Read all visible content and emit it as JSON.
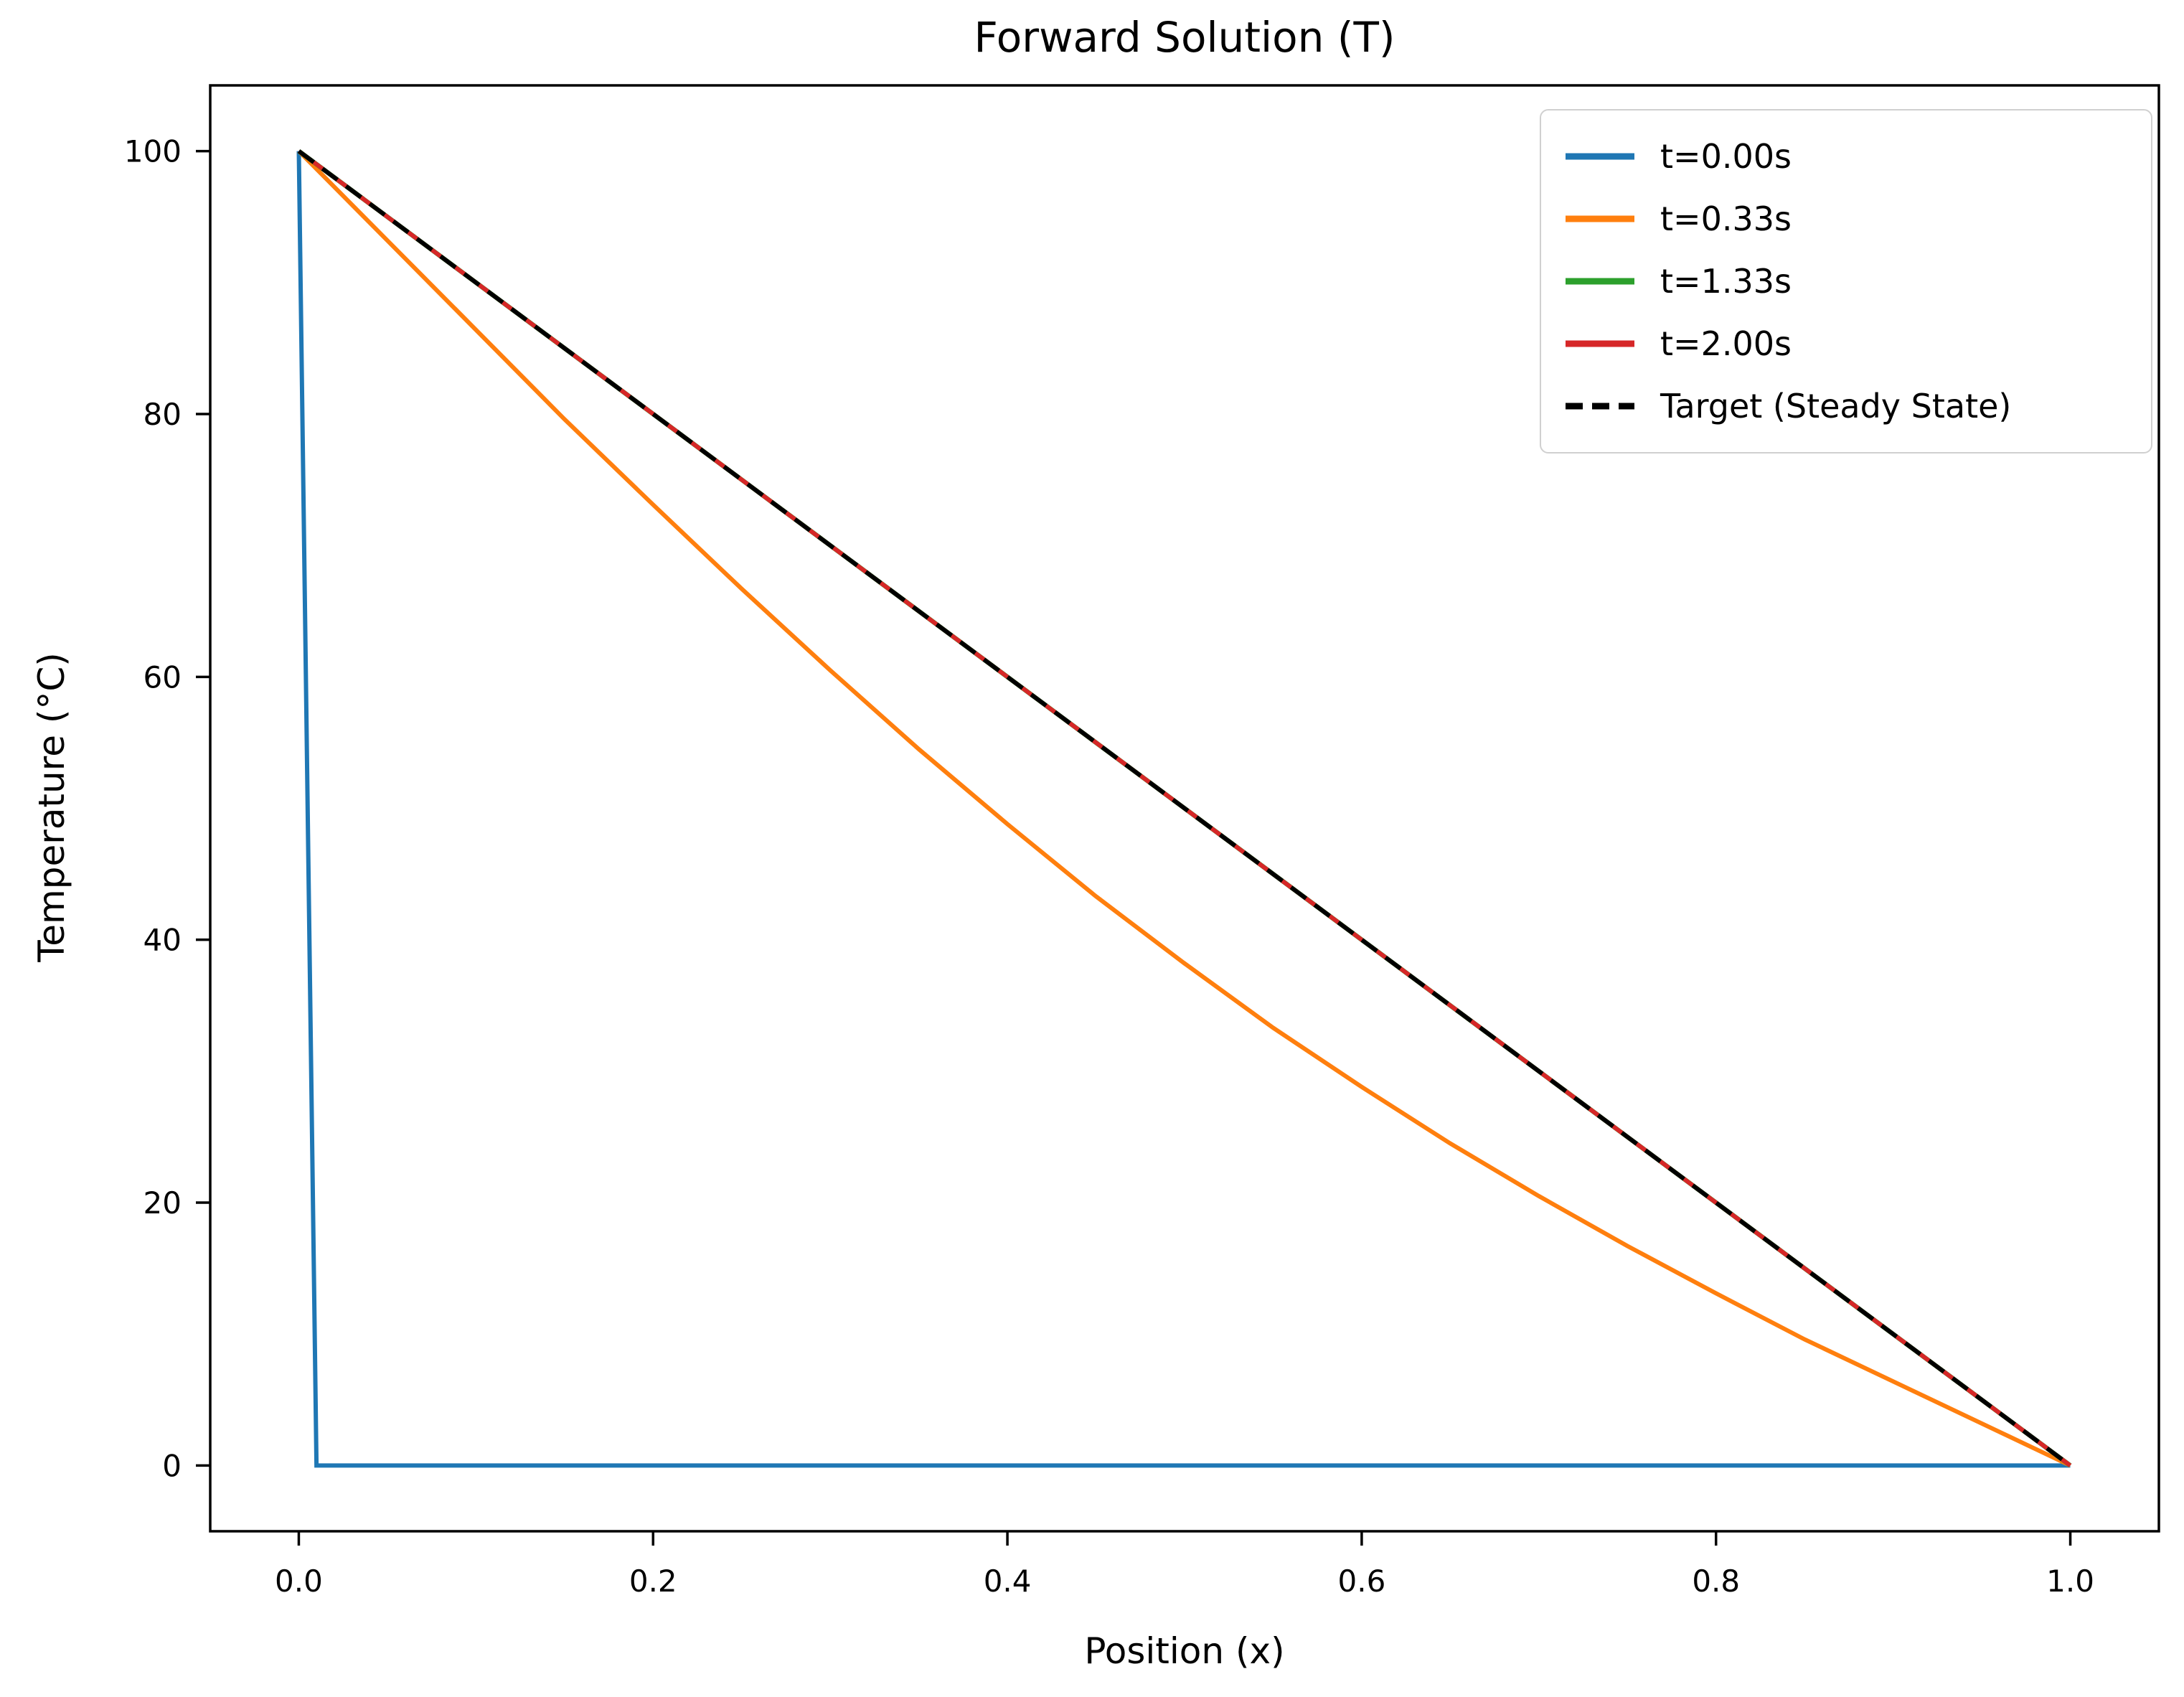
{
  "chart_data": {
    "type": "line",
    "title": "Forward Solution (T)",
    "xlabel": "Position (x)",
    "ylabel": "Temperature (°C)",
    "xlim": [
      -0.05,
      1.05
    ],
    "ylim": [
      -5,
      105
    ],
    "x_tick_values": [
      0.0,
      0.2,
      0.4,
      0.6,
      0.8,
      1.0
    ],
    "x_tick_labels": [
      "0.0",
      "0.2",
      "0.4",
      "0.6",
      "0.8",
      "1.0"
    ],
    "y_tick_values": [
      0,
      20,
      40,
      60,
      80,
      100
    ],
    "y_tick_labels": [
      "0",
      "20",
      "40",
      "60",
      "80",
      "100"
    ],
    "grid": false,
    "legend_position": "upper right",
    "series": [
      {
        "key": "t-0.00s",
        "label": "t=0.00s",
        "color": "#1f77b4",
        "dash": "solid",
        "points": [
          [
            0,
            100
          ],
          [
            0.01,
            0
          ],
          [
            1,
            0
          ]
        ]
      },
      {
        "key": "t-0.33s",
        "label": "t=0.33s",
        "color": "#ff7f0e",
        "dash": "solid",
        "points": [
          [
            0,
            100
          ],
          [
            0.05,
            93.2
          ],
          [
            0.1,
            86.4
          ],
          [
            0.15,
            79.6
          ],
          [
            0.2,
            73.1
          ],
          [
            0.25,
            66.7
          ],
          [
            0.3,
            60.5
          ],
          [
            0.35,
            54.5
          ],
          [
            0.4,
            48.8
          ],
          [
            0.45,
            43.3
          ],
          [
            0.5,
            38.2
          ],
          [
            0.55,
            33.3
          ],
          [
            0.6,
            28.8
          ],
          [
            0.65,
            24.5
          ],
          [
            0.7,
            20.5
          ],
          [
            0.75,
            16.7
          ],
          [
            0.8,
            13.1
          ],
          [
            0.85,
            9.6
          ],
          [
            0.9,
            6.4
          ],
          [
            0.95,
            3.2
          ],
          [
            1,
            0
          ]
        ]
      },
      {
        "key": "t-1.33s",
        "label": "t=1.33s",
        "color": "#2ca02c",
        "dash": "solid",
        "points": [
          [
            0,
            100
          ],
          [
            1,
            0
          ]
        ]
      },
      {
        "key": "t-2.00s",
        "label": "t=2.00s",
        "color": "#d62728",
        "dash": "solid",
        "points": [
          [
            0,
            100
          ],
          [
            1,
            0
          ]
        ]
      },
      {
        "key": "target-steady-state",
        "label": "Target (Steady State)",
        "color": "#000000",
        "dash": "dashed",
        "points": [
          [
            0,
            100
          ],
          [
            1,
            0
          ]
        ]
      }
    ]
  }
}
